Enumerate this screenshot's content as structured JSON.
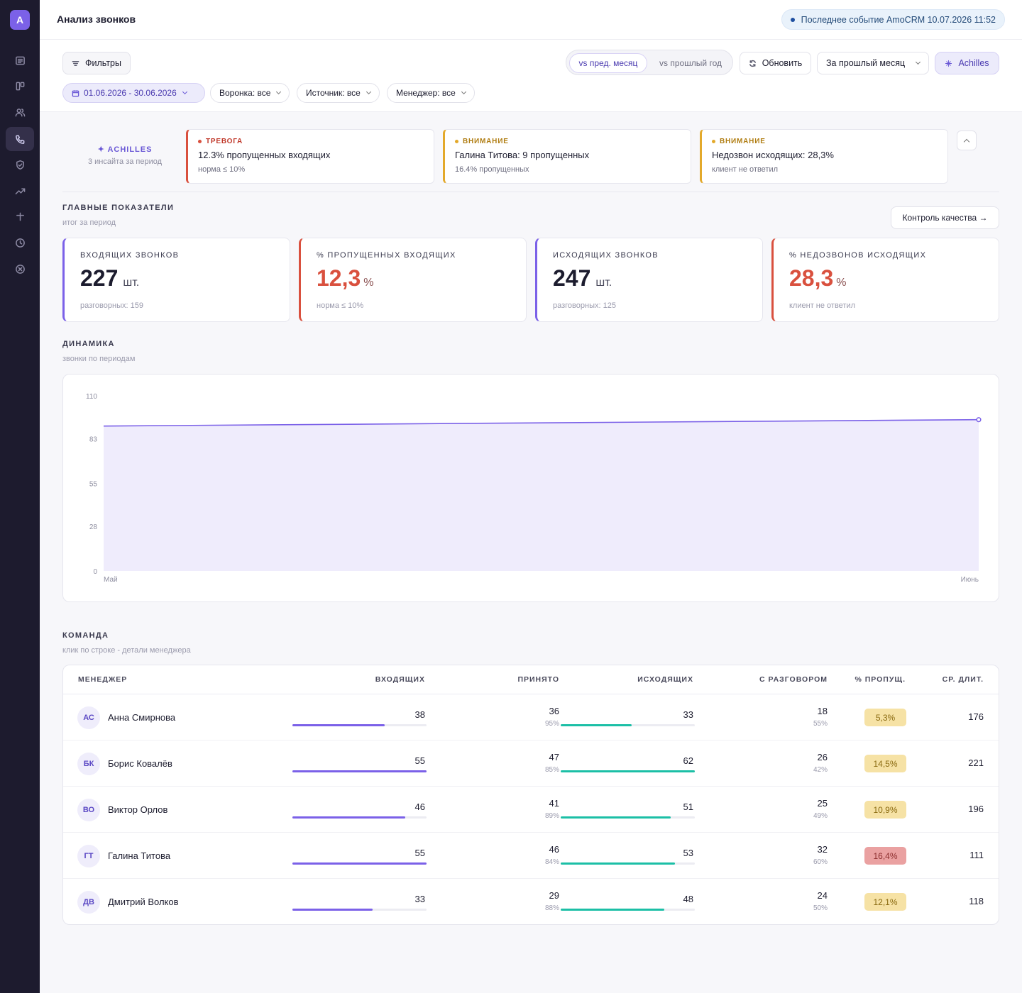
{
  "app": {
    "logo_letter": "A",
    "title": "Анализ звонков",
    "last_event": "Последнее событие AmoCRM 10.07.2026 11:52"
  },
  "sidebar": {
    "items": [
      {
        "icon": "list-icon"
      },
      {
        "icon": "kanban-icon"
      },
      {
        "icon": "users-icon"
      },
      {
        "icon": "phone-icon",
        "active": true
      },
      {
        "icon": "shield-icon"
      },
      {
        "icon": "trending-icon"
      },
      {
        "icon": "plus-icon"
      },
      {
        "icon": "clock-icon"
      },
      {
        "icon": "close-circle-icon"
      }
    ]
  },
  "filters": {
    "filters_label": "Фильтры",
    "compare_prev_month": "vs пред. месяц",
    "compare_prev_year": "vs прошлый год",
    "refresh_label": "Обновить",
    "period_label": "За прошлый месяц",
    "achilles_label": "Achilles",
    "date_range": "01.06.2026 - 30.06.2026",
    "funnel": "Воронка: все",
    "source": "Источник: все",
    "manager": "Менеджер: все"
  },
  "insights": {
    "title": "ACHILLES",
    "subtitle": "3 инсайта за период",
    "items": [
      {
        "level": "ТРЕВОГА",
        "severity": "red",
        "text": "12.3% пропущенных входящих",
        "sub": "норма ≤ 10%"
      },
      {
        "level": "ВНИМАНИЕ",
        "severity": "amber",
        "text": "Галина Титова: 9 пропущенных",
        "sub": "16.4% пропущенных"
      },
      {
        "level": "ВНИМАНИЕ",
        "severity": "amber",
        "text": "Недозвон исходящих: 28,3%",
        "sub": "клиент не ответил"
      }
    ]
  },
  "kpi_section": {
    "title": "ГЛАВНЫЕ ПОКАЗАТЕЛИ",
    "subtitle": "итог за период",
    "qc_button": "Контроль качества →"
  },
  "kpis": [
    {
      "label": "ВХОДЯЩИХ ЗВОНКОВ",
      "value": "227",
      "unit": "шт.",
      "sub": "разговорных: 159",
      "accent": "purple"
    },
    {
      "label": "% ПРОПУЩЕННЫХ ВХОДЯЩИХ",
      "value": "12,3",
      "unit": "%",
      "sub": "норма ≤ 10%",
      "accent": "red"
    },
    {
      "label": "ИСХОДЯЩИХ ЗВОНКОВ",
      "value": "247",
      "unit": "шт.",
      "sub": "разговорных: 125",
      "accent": "purple"
    },
    {
      "label": "% НЕДОЗВОНОВ ИСХОДЯЩИХ",
      "value": "28,3",
      "unit": "%",
      "sub": "клиент не ответил",
      "accent": "red"
    }
  ],
  "dynamics": {
    "title": "ДИНАМИКА",
    "subtitle": "звонки по периодам"
  },
  "chart_data": {
    "type": "area",
    "categories": [
      "Май",
      "Июнь"
    ],
    "series": [
      {
        "values": [
          91,
          95
        ],
        "color": "#7b61e8"
      }
    ],
    "yticks": [
      0,
      28,
      55,
      83,
      110
    ],
    "ylim": [
      0,
      110
    ],
    "grid": false
  },
  "team": {
    "title": "КОМАНДА",
    "subtitle": "клик по строке - детали менеджера",
    "columns": [
      "МЕНЕДЖЕР",
      "ВХОДЯЩИХ",
      "ПРИНЯТО",
      "ИСХОДЯЩИХ",
      "С РАЗГОВОРОМ",
      "% ПРОПУЩ.",
      "СР. ДЛИТ."
    ],
    "rows": [
      {
        "initials": "АС",
        "name": "Анна Смирнова",
        "incoming": "38",
        "incoming_fill": 0.69,
        "accepted": "36",
        "accepted_pct": "95%",
        "outgoing": "33",
        "outgoing_fill": 0.53,
        "talks": "18",
        "talks_pct": "55%",
        "missed": "5,3%",
        "missed_level": "warn",
        "avg": "176"
      },
      {
        "initials": "БК",
        "name": "Борис Ковалёв",
        "incoming": "55",
        "incoming_fill": 1.0,
        "accepted": "47",
        "accepted_pct": "85%",
        "outgoing": "62",
        "outgoing_fill": 1.0,
        "talks": "26",
        "talks_pct": "42%",
        "missed": "14,5%",
        "missed_level": "warn",
        "avg": "221"
      },
      {
        "initials": "ВО",
        "name": "Виктор Орлов",
        "incoming": "46",
        "incoming_fill": 0.84,
        "accepted": "41",
        "accepted_pct": "89%",
        "outgoing": "51",
        "outgoing_fill": 0.82,
        "talks": "25",
        "talks_pct": "49%",
        "missed": "10,9%",
        "missed_level": "warn",
        "avg": "196"
      },
      {
        "initials": "ГТ",
        "name": "Галина Титова",
        "incoming": "55",
        "incoming_fill": 1.0,
        "accepted": "46",
        "accepted_pct": "84%",
        "outgoing": "53",
        "outgoing_fill": 0.85,
        "talks": "32",
        "talks_pct": "60%",
        "missed": "16,4%",
        "missed_level": "bad",
        "avg": "111"
      },
      {
        "initials": "ДВ",
        "name": "Дмитрий Волков",
        "incoming": "33",
        "incoming_fill": 0.6,
        "accepted": "29",
        "accepted_pct": "88%",
        "outgoing": "48",
        "outgoing_fill": 0.77,
        "talks": "24",
        "talks_pct": "50%",
        "missed": "12,1%",
        "missed_level": "warn",
        "avg": "118"
      }
    ]
  }
}
